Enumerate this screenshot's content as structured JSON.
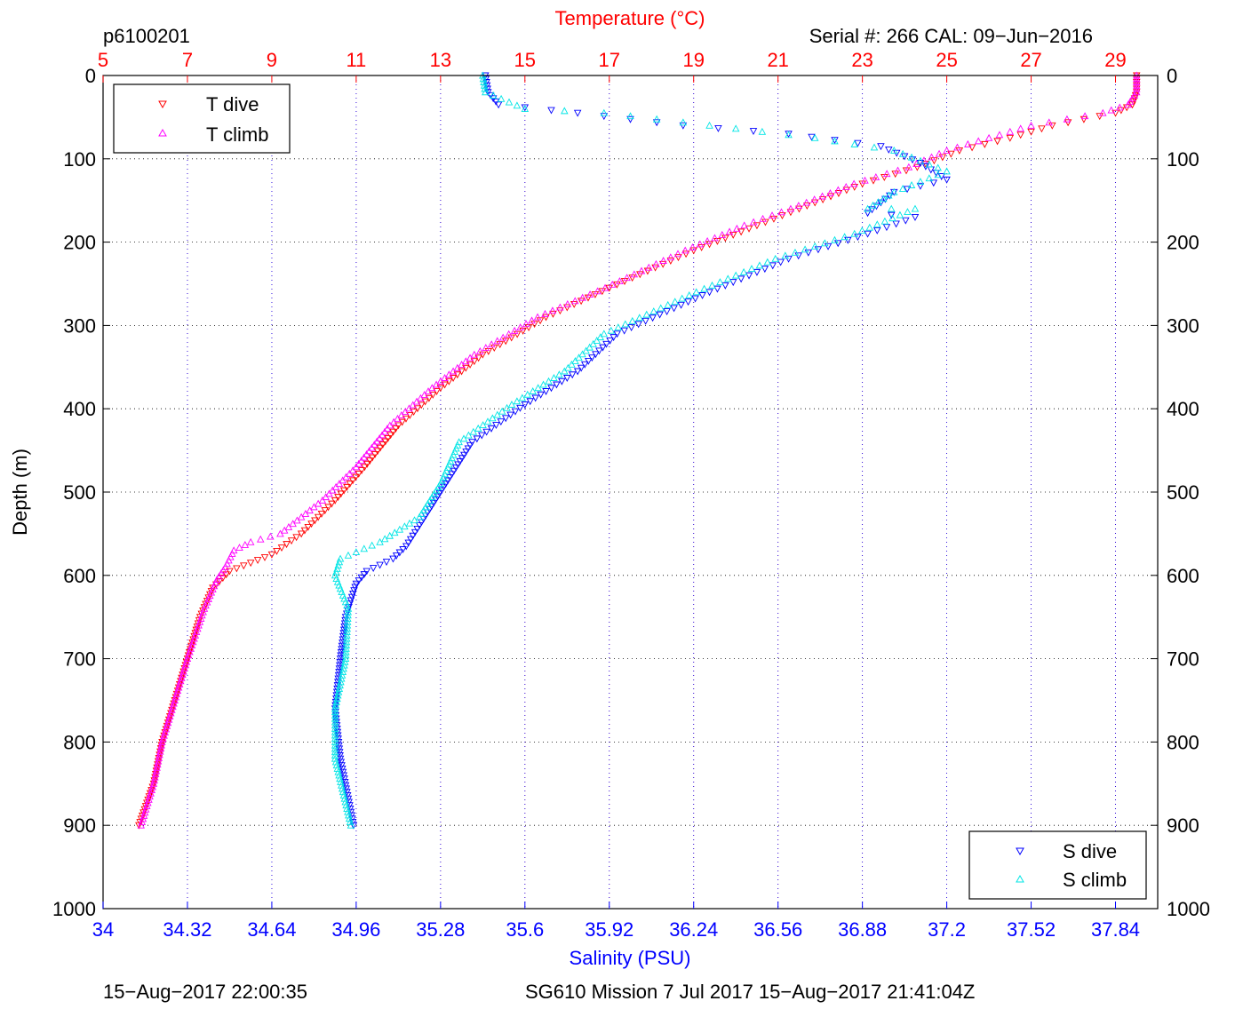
{
  "header": {
    "dive_id": "p6100201",
    "serial_cal": "Serial #: 266  CAL: 09−Jun−2016"
  },
  "footer": {
    "timestamp_left": "15−Aug−2017 22:00:35",
    "mission_info": "SG610 Mission 7 Jul 2017 15−Aug−2017 21:41:04Z"
  },
  "colors": {
    "t_dive": "#ff0000",
    "t_climb": "#ff00ff",
    "s_dive": "#0000ff",
    "s_climb": "#00e5e5",
    "temp_axis": "#ff0000",
    "sal_axis": "#0000ff",
    "frame": "#000000"
  },
  "chart_data": {
    "type": "scatter",
    "ylabel": "Depth (m)",
    "ylim": [
      1000,
      0
    ],
    "yticks": [
      "0",
      "100",
      "200",
      "300",
      "400",
      "500",
      "600",
      "700",
      "800",
      "900",
      "1000"
    ],
    "temp_axis": {
      "label": "Temperature (°C)",
      "position": "top",
      "range": [
        5,
        30
      ],
      "ticks": [
        "5",
        "7",
        "9",
        "11",
        "13",
        "15",
        "17",
        "19",
        "21",
        "23",
        "25",
        "27",
        "29"
      ]
    },
    "sal_axis": {
      "label": "Salinity (PSU)",
      "position": "bottom",
      "range": [
        34,
        38.0
      ],
      "ticks": [
        "34",
        "34.32",
        "34.64",
        "34.96",
        "35.28",
        "35.6",
        "35.92",
        "36.24",
        "36.56",
        "36.88",
        "37.2",
        "37.52",
        "37.84"
      ]
    },
    "grid": "dotted, both axes",
    "legend_temp": {
      "placement": "top-left",
      "entries": [
        "T dive",
        "T climb"
      ]
    },
    "legend_sal": {
      "placement": "bottom-right",
      "entries": [
        "S dive",
        "S climb"
      ]
    },
    "series": [
      {
        "name": "T dive",
        "axis": "temperature",
        "marker": "triangle-down",
        "points": [
          [
            29.5,
            0
          ],
          [
            29.5,
            20
          ],
          [
            29.4,
            35
          ],
          [
            29.0,
            45
          ],
          [
            27.5,
            60
          ],
          [
            26.5,
            75
          ],
          [
            25.3,
            90
          ],
          [
            24.3,
            110
          ],
          [
            23.0,
            130
          ],
          [
            21.5,
            160
          ],
          [
            20.5,
            180
          ],
          [
            19.0,
            210
          ],
          [
            17.0,
            255
          ],
          [
            15.5,
            290
          ],
          [
            14.0,
            335
          ],
          [
            13.0,
            375
          ],
          [
            12.0,
            420
          ],
          [
            11.2,
            470
          ],
          [
            10.5,
            510
          ],
          [
            9.7,
            550
          ],
          [
            9.0,
            575
          ],
          [
            8.5,
            585
          ],
          [
            8.0,
            595
          ],
          [
            7.6,
            615
          ],
          [
            7.3,
            650
          ],
          [
            7.0,
            700
          ],
          [
            6.7,
            750
          ],
          [
            6.4,
            800
          ],
          [
            6.2,
            850
          ],
          [
            5.85,
            900
          ]
        ]
      },
      {
        "name": "T climb",
        "axis": "temperature",
        "marker": "triangle-up",
        "points": [
          [
            29.5,
            0
          ],
          [
            29.5,
            20
          ],
          [
            29.3,
            35
          ],
          [
            28.7,
            45
          ],
          [
            27.0,
            60
          ],
          [
            26.0,
            75
          ],
          [
            25.0,
            90
          ],
          [
            24.1,
            110
          ],
          [
            22.8,
            130
          ],
          [
            21.3,
            160
          ],
          [
            20.2,
            180
          ],
          [
            18.8,
            210
          ],
          [
            16.9,
            255
          ],
          [
            15.3,
            290
          ],
          [
            13.8,
            335
          ],
          [
            12.8,
            375
          ],
          [
            11.8,
            420
          ],
          [
            11.0,
            470
          ],
          [
            10.2,
            510
          ],
          [
            9.2,
            550
          ],
          [
            8.5,
            560
          ],
          [
            8.1,
            570
          ],
          [
            7.9,
            590
          ],
          [
            7.7,
            605
          ],
          [
            7.4,
            640
          ],
          [
            7.0,
            700
          ],
          [
            6.7,
            750
          ],
          [
            6.4,
            800
          ],
          [
            6.2,
            850
          ],
          [
            5.9,
            900
          ]
        ]
      },
      {
        "name": "S dive",
        "axis": "salinity",
        "marker": "triangle-down",
        "points": [
          [
            35.45,
            0
          ],
          [
            35.46,
            20
          ],
          [
            35.5,
            35
          ],
          [
            35.8,
            45
          ],
          [
            36.2,
            60
          ],
          [
            36.6,
            70
          ],
          [
            36.95,
            85
          ],
          [
            37.1,
            105
          ],
          [
            37.2,
            125
          ],
          [
            37.0,
            140
          ],
          [
            36.9,
            165
          ],
          [
            37.08,
            170
          ],
          [
            36.9,
            190
          ],
          [
            36.6,
            220
          ],
          [
            36.3,
            260
          ],
          [
            35.95,
            310
          ],
          [
            35.8,
            355
          ],
          [
            35.6,
            395
          ],
          [
            35.4,
            440
          ],
          [
            35.3,
            490
          ],
          [
            35.2,
            540
          ],
          [
            35.15,
            565
          ],
          [
            35.1,
            580
          ],
          [
            35.0,
            595
          ],
          [
            34.96,
            610
          ],
          [
            34.92,
            650
          ],
          [
            34.9,
            700
          ],
          [
            34.88,
            760
          ],
          [
            34.9,
            820
          ],
          [
            34.95,
            900
          ]
        ]
      },
      {
        "name": "S climb",
        "axis": "salinity",
        "marker": "triangle-up",
        "points": [
          [
            35.44,
            0
          ],
          [
            35.45,
            20
          ],
          [
            35.6,
            40
          ],
          [
            35.9,
            45
          ],
          [
            36.3,
            60
          ],
          [
            36.7,
            75
          ],
          [
            37.0,
            90
          ],
          [
            37.2,
            115
          ],
          [
            37.0,
            140
          ],
          [
            36.9,
            160
          ],
          [
            37.08,
            160
          ],
          [
            36.85,
            190
          ],
          [
            36.55,
            220
          ],
          [
            36.25,
            260
          ],
          [
            35.9,
            310
          ],
          [
            35.75,
            355
          ],
          [
            35.55,
            395
          ],
          [
            35.35,
            440
          ],
          [
            35.28,
            490
          ],
          [
            35.2,
            530
          ],
          [
            35.05,
            560
          ],
          [
            34.9,
            580
          ],
          [
            34.88,
            600
          ],
          [
            34.93,
            640
          ],
          [
            34.92,
            700
          ],
          [
            34.88,
            760
          ],
          [
            34.88,
            820
          ],
          [
            34.94,
            900
          ]
        ]
      }
    ]
  }
}
